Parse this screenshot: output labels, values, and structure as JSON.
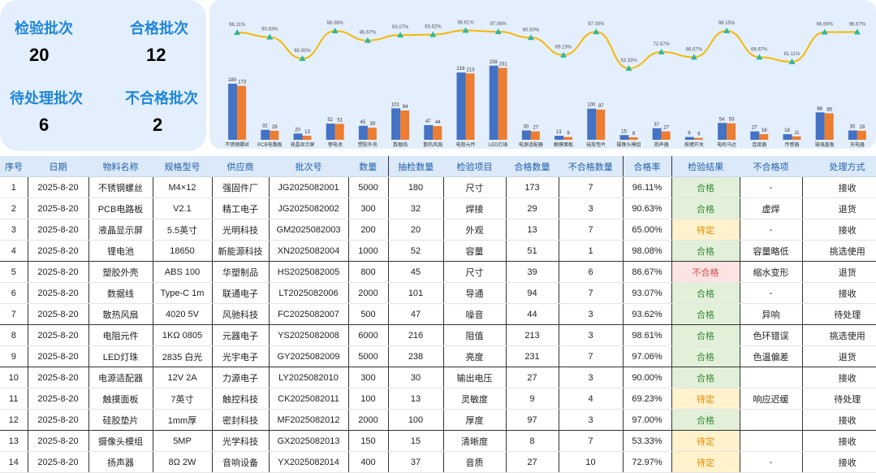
{
  "kpis": {
    "inspected": {
      "label": "检验批次",
      "value": "20"
    },
    "passed": {
      "label": "合格批次",
      "value": "12"
    },
    "pending": {
      "label": "待处理批次",
      "value": "6"
    },
    "failed": {
      "label": "不合格批次",
      "value": "2"
    }
  },
  "colors": {
    "bar_sample": "#4472c4",
    "bar_pass": "#ed7d31",
    "line": "#f5b800",
    "marker": "#2eb5a0",
    "header_bg": "#dbe9f9",
    "panel_bg": "#e4effd"
  },
  "chart_data": {
    "type": "bar",
    "categories": [
      "不锈钢螺丝",
      "PCB电路板",
      "液晶显示屏",
      "锂电池",
      "塑胶外壳",
      "数据线",
      "散热风扇",
      "电阻元件",
      "LED灯珠",
      "电源适配器",
      "触摸面板",
      "硅胶垫片",
      "摄像头模组",
      "扬声器",
      "按键开关",
      "电机马达",
      "连接器",
      "传感器",
      "玻璃盖板",
      "充电器"
    ],
    "series": [
      {
        "values": [
          180,
          32,
          20,
          52,
          45,
          101,
          47,
          216,
          238,
          30,
          13,
          100,
          15,
          37,
          9,
          54,
          27,
          18,
          88,
          30
        ]
      },
      {
        "values": [
          173,
          29,
          13,
          51,
          39,
          94,
          44,
          213,
          231,
          27,
          9,
          97,
          8,
          27,
          6,
          53,
          18,
          11,
          85,
          29
        ]
      },
      {
        "values": [
          96.11,
          90.63,
          65.0,
          98.08,
          86.67,
          93.07,
          93.62,
          98.61,
          97.06,
          90.0,
          69.23,
          97.0,
          53.33,
          72.97,
          66.67,
          98.15,
          66.67,
          61.11,
          96.59,
          96.67
        ],
        "percent_labels": [
          "96.11%",
          "90.63%",
          "65.00%",
          "98.08%",
          "86.67%",
          "93.07%",
          "93.62%",
          "98.61%",
          "97.06%",
          "90.00%",
          "69.23%",
          "97.00%",
          "53.33%",
          "72.97%",
          "66.67%",
          "98.15%",
          "66.67%",
          "61.11%",
          "96.59%",
          "96.67%"
        ]
      }
    ],
    "extra_rate_label": "96.59%",
    "legend": "none"
  },
  "table": {
    "headers": [
      "序号",
      "日期",
      "物料名称",
      "规格型号",
      "供应商",
      "批次号",
      "数量",
      "抽检数量",
      "检验项目",
      "合格数量",
      "不合格数量",
      "合格率",
      "检验结果",
      "不合格项",
      "处理方式"
    ],
    "rows": [
      [
        "1",
        "2025-8-20",
        "不锈钢螺丝",
        "M4×12",
        "强固件厂",
        "JG2025082001",
        "5000",
        "180",
        "尺寸",
        "173",
        "7",
        "96.11%",
        "合格",
        "-",
        "接收"
      ],
      [
        "2",
        "2025-8-20",
        "PCB电路板",
        "V2.1",
        "精工电子",
        "JG2025082002",
        "300",
        "32",
        "焊接",
        "29",
        "3",
        "90.63%",
        "合格",
        "虚焊",
        "退货"
      ],
      [
        "3",
        "2025-8-20",
        "液晶显示屏",
        "5.5英寸",
        "光明科技",
        "GM2025082003",
        "200",
        "20",
        "外观",
        "13",
        "7",
        "65.00%",
        "待定",
        "-",
        "接收"
      ],
      [
        "4",
        "2025-8-20",
        "锂电池",
        "18650",
        "新能源科技",
        "XN2025082004",
        "1000",
        "52",
        "容量",
        "51",
        "1",
        "98.08%",
        "合格",
        "容量略低",
        "挑选使用"
      ],
      [
        "5",
        "2025-8-20",
        "塑胶外壳",
        "ABS 100",
        "华塑制品",
        "HS2025082005",
        "800",
        "45",
        "尺寸",
        "39",
        "6",
        "86.67%",
        "不合格",
        "缩水变形",
        "退货"
      ],
      [
        "6",
        "2025-8-20",
        "数据线",
        "Type-C 1m",
        "联通电子",
        "LT2025082006",
        "2000",
        "101",
        "导通",
        "94",
        "7",
        "93.07%",
        "合格",
        "-",
        "接收"
      ],
      [
        "7",
        "2025-8-20",
        "散热风扇",
        "4020 5V",
        "风驰科技",
        "FC2025082007",
        "500",
        "47",
        "噪音",
        "44",
        "3",
        "93.62%",
        "合格",
        "异响",
        "待处理"
      ],
      [
        "8",
        "2025-8-20",
        "电阻元件",
        "1KΩ 0805",
        "元器电子",
        "YS2025082008",
        "6000",
        "216",
        "阻值",
        "213",
        "3",
        "98.61%",
        "合格",
        "色环错误",
        "挑选使用"
      ],
      [
        "9",
        "2025-8-20",
        "LED灯珠",
        "2835 白光",
        "光宇电子",
        "GY2025082009",
        "5000",
        "238",
        "亮度",
        "231",
        "7",
        "97.06%",
        "合格",
        "色温偏差",
        "退货"
      ],
      [
        "10",
        "2025-8-20",
        "电源适配器",
        "12V 2A",
        "力源电子",
        "LY2025082010",
        "300",
        "30",
        "输出电压",
        "27",
        "3",
        "90.00%",
        "合格",
        "",
        "接收"
      ],
      [
        "11",
        "2025-8-20",
        "触摸面板",
        "7英寸",
        "触控科技",
        "CK2025082011",
        "100",
        "13",
        "灵敏度",
        "9",
        "4",
        "69.23%",
        "待定",
        "响应迟缓",
        "待处理"
      ],
      [
        "12",
        "2025-8-20",
        "硅胶垫片",
        "1mm厚",
        "密封科技",
        "MF2025082012",
        "2000",
        "100",
        "厚度",
        "97",
        "3",
        "97.00%",
        "合格",
        "",
        "接收"
      ],
      [
        "13",
        "2025-8-20",
        "摄像头模组",
        "5MP",
        "光学科技",
        "GX2025082013",
        "150",
        "15",
        "清晰度",
        "8",
        "7",
        "53.33%",
        "待定",
        "",
        "接收"
      ],
      [
        "14",
        "2025-8-20",
        "扬声器",
        "8Ω 2W",
        "音响设备",
        "YX2025082014",
        "400",
        "37",
        "音质",
        "27",
        "10",
        "72.97%",
        "待定",
        "-",
        "接收"
      ]
    ]
  }
}
